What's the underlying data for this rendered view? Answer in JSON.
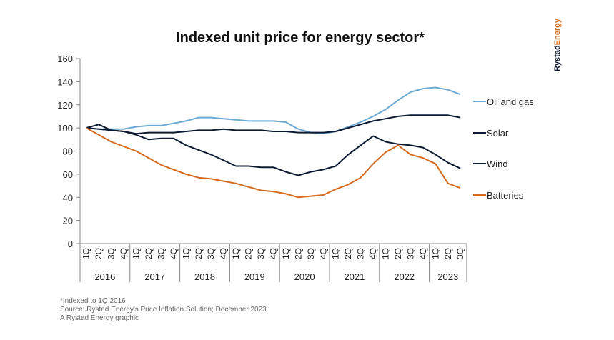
{
  "chart_data": {
    "type": "line",
    "title": "Indexed unit price for energy sector*",
    "xlabel": "",
    "ylabel": "",
    "ylim": [
      0,
      160
    ],
    "yticks": [
      0,
      20,
      40,
      60,
      80,
      100,
      120,
      140,
      160
    ],
    "grid": false,
    "legend_placement": "right",
    "years": [
      "2016",
      "2017",
      "2018",
      "2019",
      "2020",
      "2021",
      "2022",
      "2023"
    ],
    "quarters": [
      "1Q",
      "2Q",
      "3Q",
      "4Q",
      "1Q",
      "2Q",
      "3Q",
      "4Q",
      "1Q",
      "2Q",
      "3Q",
      "4Q",
      "1Q",
      "2Q",
      "3Q",
      "4Q",
      "1Q",
      "2Q",
      "3Q",
      "4Q",
      "1Q",
      "2Q",
      "3Q",
      "4Q",
      "1Q",
      "2Q",
      "3Q",
      "4Q",
      "1Q",
      "2Q",
      "3Q"
    ],
    "series": [
      {
        "name": "Oil and gas",
        "color": "#6aaad4",
        "values": [
          100,
          99,
          99,
          99,
          101,
          102,
          102,
          104,
          106,
          109,
          109,
          108,
          107,
          106,
          106,
          106,
          105,
          99,
          96,
          95,
          97,
          101,
          105,
          110,
          116,
          124,
          131,
          134,
          135,
          133,
          129
        ]
      },
      {
        "name": "Solar",
        "color": "#0d1a33",
        "values": [
          100,
          99,
          98,
          97,
          95,
          96,
          96,
          96,
          97,
          98,
          98,
          99,
          98,
          98,
          98,
          97,
          97,
          96,
          96,
          96,
          97,
          100,
          103,
          106,
          108,
          110,
          111,
          111,
          111,
          111,
          109
        ]
      },
      {
        "name": "Wind",
        "color": "#0d1a33",
        "values": [
          100,
          103,
          98,
          97,
          94,
          90,
          91,
          91,
          85,
          81,
          77,
          72,
          67,
          67,
          66,
          66,
          62,
          59,
          62,
          64,
          67,
          77,
          85,
          93,
          88,
          86,
          85,
          83,
          77,
          70,
          65
        ]
      },
      {
        "name": "Batteries",
        "color": "#d46a1e",
        "values": [
          100,
          94,
          88,
          84,
          80,
          74,
          68,
          64,
          60,
          57,
          56,
          54,
          52,
          49,
          46,
          45,
          43,
          40,
          41,
          42,
          47,
          51,
          57,
          69,
          79,
          85,
          77,
          74,
          69,
          52,
          48
        ]
      }
    ]
  },
  "footer": {
    "note": "*Indexed to 1Q 2016",
    "source": "Source: Rystad Energy's Price Inflation Solution; December 2023",
    "credit": "A Rystad Energy graphic"
  },
  "logo": {
    "text_a": "Rystad",
    "text_b": "Energy",
    "color_a": "#0d1a33",
    "color_b": "#d46a1e"
  }
}
